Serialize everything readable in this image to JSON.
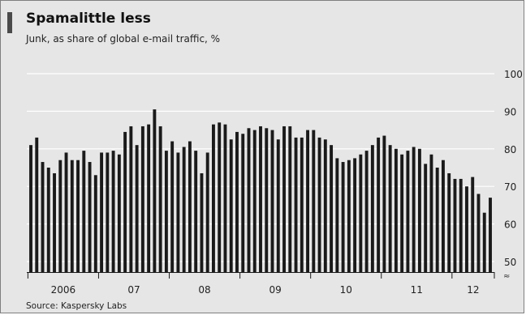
{
  "header": {
    "title": "Spamalittle less",
    "subtitle": "Junk, as share of global e-mail traffic, %"
  },
  "footer": {
    "source": "Source: Kaspersky Labs"
  },
  "colors": {
    "background": "#e6e6e6",
    "bars": "#1a1a1a",
    "gridline": "#ffffff",
    "accent_tab": "#4a4a4a"
  },
  "chart_data": {
    "type": "bar",
    "title": "Spamalittle less",
    "subtitle": "Junk, as share of global e-mail traffic, %",
    "xlabel": "",
    "ylabel": "",
    "ylim": [
      48,
      100
    ],
    "y_axis_position": "right",
    "y_axis_broken": true,
    "yticks": [
      50,
      60,
      70,
      80,
      90,
      100
    ],
    "grid": true,
    "year_labels": [
      "2006",
      "07",
      "08",
      "09",
      "10",
      "11",
      "12"
    ],
    "x_period": "monthly, Jan 2006 - Nov 2012",
    "values": [
      81,
      83,
      76.5,
      75,
      73.5,
      77,
      79,
      77,
      77,
      79.5,
      76.5,
      73,
      79,
      79,
      79.5,
      78.5,
      84.5,
      86,
      81,
      86,
      86.5,
      90.5,
      86,
      79.5,
      82,
      79,
      80.5,
      82,
      79.5,
      73.5,
      79,
      86.5,
      87,
      86.5,
      82.5,
      84.5,
      84,
      85.5,
      85,
      86,
      85.5,
      85,
      82.5,
      86,
      86,
      83,
      83,
      85,
      85,
      83,
      82.5,
      81,
      77.5,
      76.5,
      77,
      77.5,
      78.5,
      79.5,
      81,
      83,
      83.5,
      81,
      80,
      78.5,
      79.5,
      80.5,
      80,
      76,
      78.5,
      75,
      77,
      73.5,
      72,
      72,
      70,
      72.5,
      68,
      63,
      67
    ]
  }
}
